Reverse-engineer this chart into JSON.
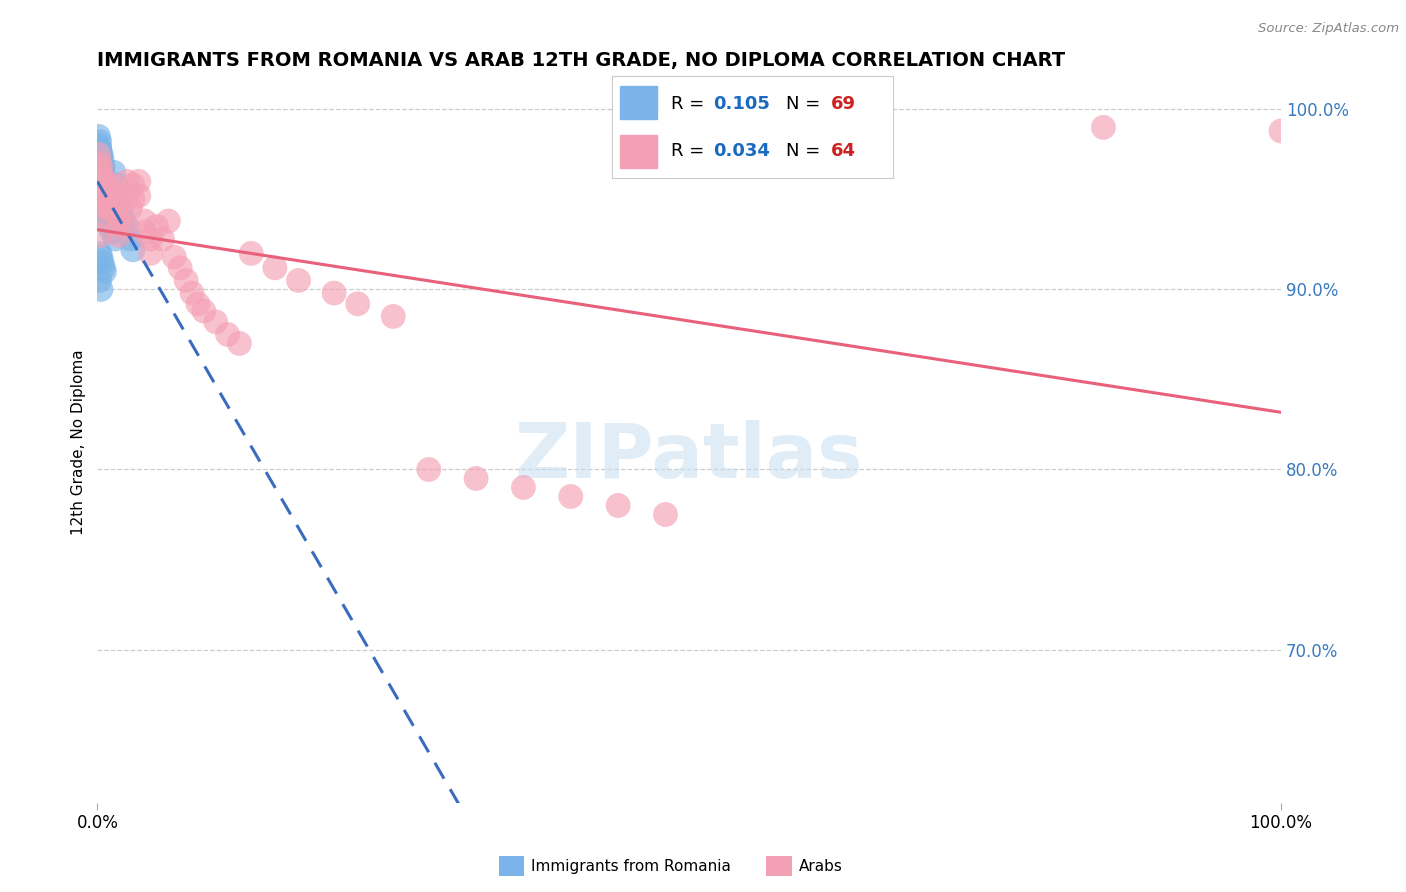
{
  "title": "IMMIGRANTS FROM ROMANIA VS ARAB 12TH GRADE, NO DIPLOMA CORRELATION CHART",
  "source": "Source: ZipAtlas.com",
  "ylabel": "12th Grade, No Diploma",
  "legend_r1": "R =  0.105",
  "legend_n1": "N = 69",
  "legend_r2": "R =  0.034",
  "legend_n2": "N = 64",
  "romania_color": "#7ab4e8",
  "arab_color": "#f4a0b4",
  "romania_line_color": "#3a6bbf",
  "arab_line_color": "#e8607a",
  "grid_color": "#cccccc",
  "bottom_legend_label1": "Immigrants from Romania",
  "bottom_legend_label2": "Arabs",
  "xlim": [
    0.0,
    1.0
  ],
  "ylim": [
    0.615,
    1.015
  ],
  "romania_x": [
    0.001,
    0.001,
    0.001,
    0.002,
    0.002,
    0.002,
    0.002,
    0.002,
    0.003,
    0.003,
    0.003,
    0.003,
    0.003,
    0.003,
    0.003,
    0.004,
    0.004,
    0.004,
    0.004,
    0.004,
    0.005,
    0.005,
    0.005,
    0.005,
    0.005,
    0.006,
    0.006,
    0.006,
    0.006,
    0.007,
    0.007,
    0.007,
    0.008,
    0.008,
    0.009,
    0.01,
    0.01,
    0.012,
    0.014,
    0.016,
    0.018,
    0.02,
    0.022,
    0.025,
    0.028,
    0.03,
    0.001,
    0.002,
    0.002,
    0.003,
    0.003,
    0.004,
    0.004,
    0.005,
    0.005,
    0.006,
    0.006,
    0.007,
    0.008,
    0.01,
    0.012,
    0.015,
    0.002,
    0.003,
    0.004,
    0.005,
    0.006,
    0.002,
    0.003
  ],
  "romania_y": [
    0.975,
    0.98,
    0.972,
    0.978,
    0.968,
    0.973,
    0.965,
    0.96,
    0.97,
    0.975,
    0.968,
    0.963,
    0.958,
    0.953,
    0.948,
    0.972,
    0.965,
    0.96,
    0.955,
    0.95,
    0.968,
    0.963,
    0.958,
    0.952,
    0.946,
    0.96,
    0.955,
    0.95,
    0.945,
    0.958,
    0.952,
    0.946,
    0.955,
    0.948,
    0.952,
    0.95,
    0.945,
    0.948,
    0.965,
    0.958,
    0.952,
    0.946,
    0.94,
    0.935,
    0.928,
    0.922,
    0.985,
    0.982,
    0.978,
    0.975,
    0.972,
    0.968,
    0.964,
    0.96,
    0.956,
    0.952,
    0.948,
    0.944,
    0.94,
    0.936,
    0.932,
    0.928,
    0.92,
    0.918,
    0.915,
    0.912,
    0.91,
    0.905,
    0.9
  ],
  "arab_x": [
    0.001,
    0.002,
    0.002,
    0.003,
    0.003,
    0.004,
    0.004,
    0.005,
    0.005,
    0.006,
    0.006,
    0.007,
    0.007,
    0.008,
    0.008,
    0.009,
    0.01,
    0.01,
    0.012,
    0.012,
    0.015,
    0.015,
    0.018,
    0.018,
    0.02,
    0.022,
    0.025,
    0.025,
    0.028,
    0.03,
    0.03,
    0.035,
    0.035,
    0.04,
    0.04,
    0.045,
    0.045,
    0.05,
    0.055,
    0.06,
    0.065,
    0.07,
    0.075,
    0.08,
    0.085,
    0.09,
    0.1,
    0.11,
    0.12,
    0.13,
    0.15,
    0.17,
    0.2,
    0.22,
    0.25,
    0.28,
    0.32,
    0.36,
    0.4,
    0.44,
    0.48,
    0.85,
    1.0,
    0.002
  ],
  "arab_y": [
    0.975,
    0.97,
    0.965,
    0.968,
    0.96,
    0.955,
    0.95,
    0.962,
    0.958,
    0.953,
    0.948,
    0.958,
    0.952,
    0.945,
    0.94,
    0.955,
    0.95,
    0.945,
    0.958,
    0.952,
    0.948,
    0.942,
    0.936,
    0.93,
    0.94,
    0.935,
    0.96,
    0.952,
    0.945,
    0.958,
    0.95,
    0.96,
    0.952,
    0.938,
    0.932,
    0.928,
    0.92,
    0.935,
    0.928,
    0.938,
    0.918,
    0.912,
    0.905,
    0.898,
    0.892,
    0.888,
    0.882,
    0.875,
    0.87,
    0.92,
    0.912,
    0.905,
    0.898,
    0.892,
    0.885,
    0.8,
    0.795,
    0.79,
    0.785,
    0.78,
    0.775,
    0.99,
    0.988,
    0.93
  ]
}
